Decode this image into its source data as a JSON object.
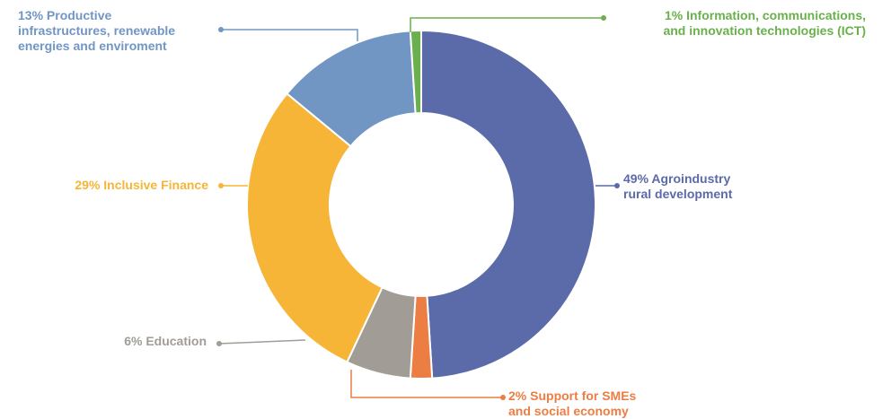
{
  "chart_data": {
    "type": "pie",
    "donut": true,
    "legend": "none",
    "slices": [
      {
        "key": "agro",
        "value": 49,
        "color": "#5b6aa8",
        "label": [
          "49% Agroindustry",
          "rural development"
        ]
      },
      {
        "key": "smes",
        "value": 2,
        "color": "#ec7d43",
        "label": [
          "2% Support for SMEs",
          "and social economy"
        ]
      },
      {
        "key": "edu",
        "value": 6,
        "color": "#a19d96",
        "label": [
          "6% Education"
        ]
      },
      {
        "key": "finance",
        "value": 29,
        "color": "#f7b538",
        "label": [
          "29% Inclusive Finance"
        ]
      },
      {
        "key": "infra",
        "value": 13,
        "color": "#7196c4",
        "label": [
          "13% Productive",
          "infrastructures, renewable",
          "energies and enviroment"
        ]
      },
      {
        "key": "ict",
        "value": 1,
        "color": "#6ab04c",
        "label": [
          "1% Information, communications,",
          "and innovation technologies (ICT)"
        ]
      }
    ]
  }
}
